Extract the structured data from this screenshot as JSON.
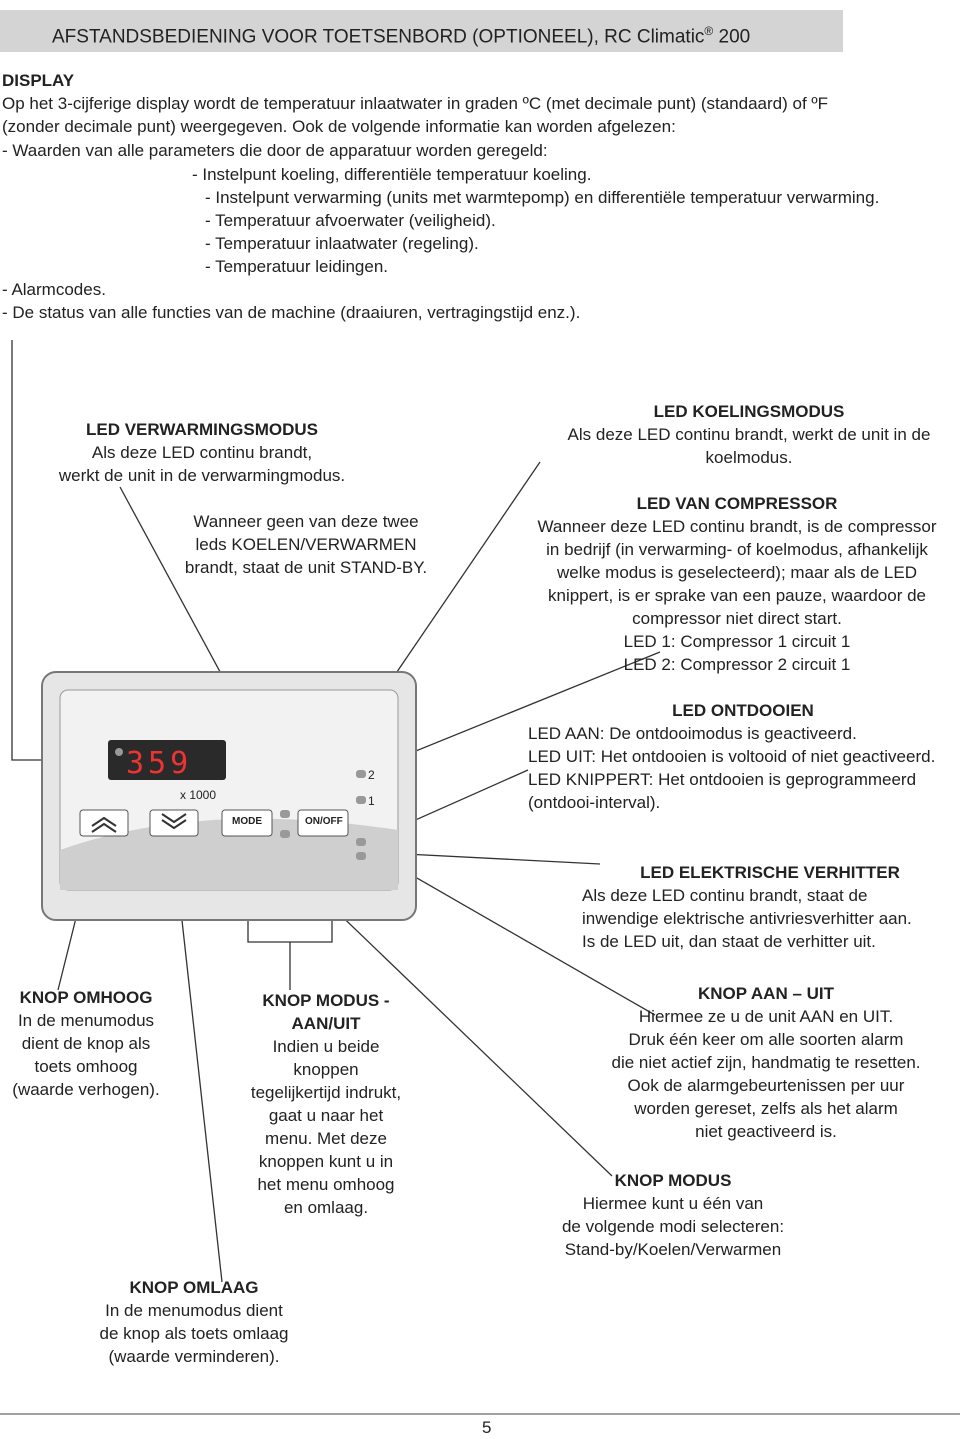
{
  "header": {
    "title": "AFSTANDSBEDIENING VOOR TOETSENBORD (OPTIONEEL), RC Climatic",
    "mark": "®",
    "model": "200"
  },
  "display": {
    "heading": "DISPLAY",
    "lines": [
      "Op het 3-cijferige display wordt de temperatuur inlaatwater in graden ºC (met decimale punt) (standaard) of ºF",
      "(zonder decimale punt) weergegeven. Ook de volgende informatie kan worden afgelezen:",
      "- Waarden van alle parameters die door de apparatuur worden geregeld:",
      "- Instelpunt koeling, differentiële temperatuur koeling.",
      "- Instelpunt verwarming (units met warmtepomp) en differentiële temperatuur verwarming.",
      "- Temperatuur afvoerwater (veiligheid).",
      "- Temperatuur inlaatwater (regeling).",
      "- Temperatuur leidingen.",
      "- Alarmcodes.",
      "- De status van alle functies van de machine (draaiuren, vertragingstijd enz.)."
    ]
  },
  "callouts": [
    {
      "heading": "LED VERWARMINGSMODUS",
      "lines": [
        "Als deze LED continu brandt,",
        "werkt de unit in de verwarmingmodus."
      ]
    },
    {
      "lines": [
        "Wanneer geen van deze twee",
        "leds KOELEN/VERWARMEN",
        "brandt, staat de unit STAND-BY."
      ]
    },
    {
      "heading": "LED KOELINGSMODUS",
      "lines": [
        "Als deze LED continu brandt, werkt de unit in de",
        "koelmodus."
      ]
    },
    {
      "heading": "LED VAN COMPRESSOR",
      "lines": [
        "Wanneer deze LED continu brandt, is de compressor",
        "in bedrijf (in verwarming- of koelmodus, afhankelijk",
        "welke modus is geselecteerd); maar als de LED",
        "knippert, is er sprake van een pauze, waardoor de",
        "compressor niet direct start.",
        "LED 1: Compressor 1 circuit 1",
        "LED 2: Compressor 2 circuit 1"
      ]
    },
    {
      "heading": "LED ONTDOOIEN",
      "lines": [
        "LED AAN: De ontdooimodus is geactiveerd.",
        "LED UIT: Het ontdooien is voltooid of niet geactiveerd.",
        "LED KNIPPERT: Het ontdooien is geprogrammeerd",
        "(ontdooi-interval)."
      ]
    },
    {
      "heading": "LED ELEKTRISCHE VERHITTER",
      "lines": [
        "Als deze LED continu brandt, staat de",
        "inwendige elektrische antivriesverhitter aan.",
        "Is de LED uit, dan staat de verhitter uit."
      ]
    },
    {
      "heading": "KNOP OMHOOG",
      "lines": [
        "In de menumodus",
        "dient de knop als",
        "toets omhoog",
        "(waarde verhogen)."
      ]
    },
    {
      "heading": "KNOP MODUS - AAN/UIT",
      "lines": [
        "Indien u beide",
        "knoppen",
        "tegelijkertijd indrukt,",
        "gaat u naar het",
        "menu. Met deze",
        "knoppen kunt u  in",
        "het menu omhoog",
        "en omlaag."
      ]
    },
    {
      "heading": "KNOP AAN – UIT",
      "lines": [
        "Hiermee ze u de unit AAN en UIT.",
        "Druk één keer om alle soorten alarm",
        "die niet actief zijn, handmatig te resetten.",
        "Ook de alarmgebeurtenissen per uur",
        "worden gereset, zelfs als het alarm",
        "niet geactiveerd is."
      ]
    },
    {
      "heading": "KNOP MODUS",
      "lines": [
        "Hiermee kunt u één van",
        "de volgende modi selecteren:",
        "Stand-by/Koelen/Verwarmen"
      ]
    },
    {
      "heading": "KNOP OMLAAG",
      "lines": [
        "In de menumodus dient",
        "de knop als toets omlaag",
        "(waarde verminderen)."
      ]
    }
  ],
  "panel": {
    "display": "359",
    "multiplier": "x 1000",
    "mode": "MODE",
    "onoff": "ON/OFF",
    "led2": "2",
    "led1": "1"
  },
  "footer": {
    "page": "5"
  }
}
